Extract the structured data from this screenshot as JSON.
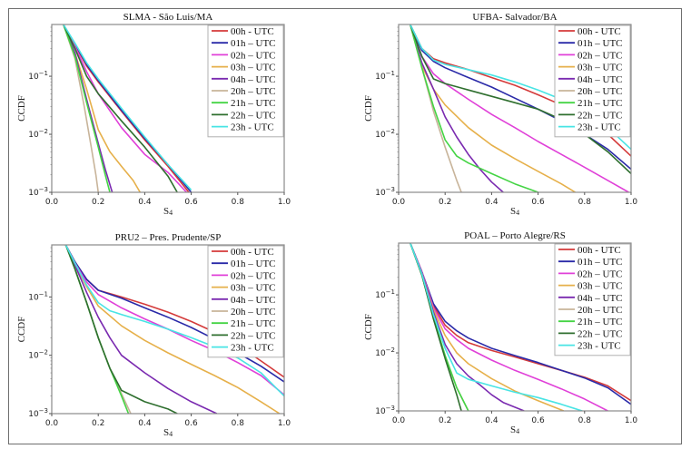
{
  "figure": {
    "legend_labels": [
      "00h - UTC",
      "01h – UTC",
      "02h – UTC",
      "03h – UTC",
      "04h – UTC",
      "20h – UTC",
      "21h – UTC",
      "22h – UTC",
      "23h - UTC"
    ],
    "series_colors": [
      "#d43a3a",
      "#2a2aa8",
      "#e040d8",
      "#e6b04a",
      "#7a2ab0",
      "#c8b49a",
      "#44d444",
      "#2f6f2f",
      "#48e4e4"
    ]
  },
  "chart_data": [
    {
      "type": "line",
      "title": "SLMA  - São Luis/MA",
      "xlabel": "S4",
      "ylabel": "CCDF",
      "xlim": [
        0.0,
        1.0
      ],
      "ylim": [
        0.001,
        0.78
      ],
      "yscale": "log",
      "xticks": [
        "0.0",
        "0.2",
        "0.4",
        "0.6",
        "0.8",
        "1.0"
      ],
      "yticks": [
        "10^-3",
        "10^-2",
        "10^-1"
      ],
      "legend": "top-right",
      "grid": false,
      "series": [
        {
          "name": "00h - UTC",
          "x": [
            0.05,
            0.1,
            0.15,
            0.2,
            0.3,
            0.4,
            0.5,
            0.59
          ],
          "y": [
            0.78,
            0.35,
            0.15,
            0.08,
            0.025,
            0.008,
            0.0028,
            0.001
          ]
        },
        {
          "name": "01h – UTC",
          "x": [
            0.05,
            0.1,
            0.15,
            0.2,
            0.3,
            0.4,
            0.5,
            0.6
          ],
          "y": [
            0.78,
            0.36,
            0.16,
            0.085,
            0.026,
            0.0085,
            0.003,
            0.001
          ]
        },
        {
          "name": "02h – UTC",
          "x": [
            0.05,
            0.1,
            0.15,
            0.2,
            0.3,
            0.4,
            0.5,
            0.58
          ],
          "y": [
            0.78,
            0.33,
            0.12,
            0.05,
            0.013,
            0.0045,
            0.0022,
            0.001
          ]
        },
        {
          "name": "03h – UTC",
          "x": [
            0.05,
            0.1,
            0.15,
            0.2,
            0.25,
            0.3,
            0.35,
            0.38
          ],
          "y": [
            0.78,
            0.25,
            0.06,
            0.012,
            0.005,
            0.0028,
            0.0016,
            0.001
          ]
        },
        {
          "name": "04h – UTC",
          "x": [
            0.05,
            0.1,
            0.15,
            0.2,
            0.23,
            0.26
          ],
          "y": [
            0.78,
            0.25,
            0.04,
            0.007,
            0.0025,
            0.001
          ]
        },
        {
          "name": "20h – UTC",
          "x": [
            0.05,
            0.1,
            0.14,
            0.17,
            0.19,
            0.2
          ],
          "y": [
            0.78,
            0.2,
            0.03,
            0.006,
            0.002,
            0.001
          ]
        },
        {
          "name": "21h – UTC",
          "x": [
            0.05,
            0.1,
            0.15,
            0.2,
            0.23,
            0.25
          ],
          "y": [
            0.78,
            0.22,
            0.035,
            0.006,
            0.002,
            0.001
          ]
        },
        {
          "name": "22h – UTC",
          "x": [
            0.05,
            0.1,
            0.15,
            0.2,
            0.3,
            0.4,
            0.5,
            0.54
          ],
          "y": [
            0.78,
            0.3,
            0.1,
            0.05,
            0.017,
            0.006,
            0.0019,
            0.001
          ]
        },
        {
          "name": "23h - UTC",
          "x": [
            0.05,
            0.1,
            0.15,
            0.2,
            0.3,
            0.4,
            0.5,
            0.6
          ],
          "y": [
            0.78,
            0.37,
            0.17,
            0.09,
            0.028,
            0.009,
            0.003,
            0.0011
          ]
        }
      ]
    },
    {
      "type": "line",
      "title": "UFBA- Salvador/BA",
      "xlabel": "S4",
      "ylabel": "CCDF",
      "xlim": [
        0.0,
        1.0
      ],
      "ylim": [
        0.001,
        0.78
      ],
      "yscale": "log",
      "xticks": [
        "0.0",
        "0.2",
        "0.4",
        "0.6",
        "0.8",
        "1.0"
      ],
      "yticks": [
        "10^-3",
        "10^-2",
        "10^-1"
      ],
      "legend": "top-right",
      "grid": false,
      "series": [
        {
          "name": "00h - UTC",
          "x": [
            0.05,
            0.1,
            0.15,
            0.2,
            0.3,
            0.4,
            0.5,
            0.6,
            0.7,
            0.8,
            0.9,
            1.0
          ],
          "y": [
            0.78,
            0.3,
            0.2,
            0.17,
            0.13,
            0.095,
            0.07,
            0.048,
            0.032,
            0.019,
            0.01,
            0.0042
          ]
        },
        {
          "name": "01h – UTC",
          "x": [
            0.05,
            0.1,
            0.15,
            0.2,
            0.3,
            0.4,
            0.5,
            0.6,
            0.7,
            0.8,
            0.9,
            1.0
          ],
          "y": [
            0.78,
            0.28,
            0.18,
            0.14,
            0.095,
            0.065,
            0.042,
            0.027,
            0.017,
            0.01,
            0.0055,
            0.0025
          ]
        },
        {
          "name": "02h – UTC",
          "x": [
            0.05,
            0.1,
            0.15,
            0.2,
            0.3,
            0.4,
            0.5,
            0.6,
            0.7,
            0.8,
            0.9,
            0.99
          ],
          "y": [
            0.78,
            0.22,
            0.11,
            0.075,
            0.04,
            0.022,
            0.013,
            0.0075,
            0.0045,
            0.0027,
            0.0016,
            0.001
          ]
        },
        {
          "name": "03h – UTC",
          "x": [
            0.05,
            0.1,
            0.15,
            0.2,
            0.3,
            0.4,
            0.5,
            0.6,
            0.7,
            0.76
          ],
          "y": [
            0.78,
            0.15,
            0.06,
            0.032,
            0.013,
            0.0065,
            0.0038,
            0.0023,
            0.0014,
            0.001
          ]
        },
        {
          "name": "04h – UTC",
          "x": [
            0.05,
            0.1,
            0.15,
            0.2,
            0.25,
            0.3,
            0.35,
            0.4,
            0.45
          ],
          "y": [
            0.78,
            0.17,
            0.06,
            0.02,
            0.009,
            0.0045,
            0.0025,
            0.0015,
            0.001
          ]
        },
        {
          "name": "20h – UTC",
          "x": [
            0.05,
            0.1,
            0.15,
            0.2,
            0.25,
            0.27
          ],
          "y": [
            0.78,
            0.14,
            0.025,
            0.006,
            0.0016,
            0.001
          ]
        },
        {
          "name": "21h – UTC",
          "x": [
            0.05,
            0.1,
            0.15,
            0.2,
            0.25,
            0.3,
            0.4,
            0.5,
            0.6
          ],
          "y": [
            0.78,
            0.14,
            0.03,
            0.008,
            0.0042,
            0.0032,
            0.0021,
            0.0014,
            0.001
          ]
        },
        {
          "name": "22h – UTC",
          "x": [
            0.05,
            0.1,
            0.15,
            0.2,
            0.3,
            0.4,
            0.5,
            0.6,
            0.7,
            0.8,
            0.9,
            1.0
          ],
          "y": [
            0.78,
            0.22,
            0.09,
            0.075,
            0.058,
            0.045,
            0.035,
            0.027,
            0.018,
            0.01,
            0.005,
            0.0021
          ]
        },
        {
          "name": "23h - UTC",
          "x": [
            0.05,
            0.1,
            0.15,
            0.2,
            0.3,
            0.4,
            0.5,
            0.6,
            0.7,
            0.8,
            0.9,
            1.0
          ],
          "y": [
            0.78,
            0.3,
            0.19,
            0.16,
            0.13,
            0.105,
            0.08,
            0.058,
            0.04,
            0.025,
            0.013,
            0.0055
          ]
        }
      ]
    },
    {
      "type": "line",
      "title": "PRU2 – Pres. Prudente/SP",
      "xlabel": "S4",
      "ylabel": "CCDF",
      "xlim": [
        0.0,
        1.0
      ],
      "ylim": [
        0.001,
        0.78
      ],
      "yscale": "log",
      "xticks": [
        "0.0",
        "0.2",
        "0.4",
        "0.6",
        "0.8",
        "1.0"
      ],
      "yticks": [
        "10^-3",
        "10^-2",
        "10^-1"
      ],
      "legend": "top-right",
      "grid": false,
      "series": [
        {
          "name": "00h - UTC",
          "x": [
            0.06,
            0.1,
            0.15,
            0.2,
            0.3,
            0.4,
            0.5,
            0.6,
            0.7,
            0.8,
            0.9,
            1.0
          ],
          "y": [
            0.78,
            0.4,
            0.2,
            0.13,
            0.1,
            0.075,
            0.055,
            0.038,
            0.025,
            0.015,
            0.008,
            0.0042
          ]
        },
        {
          "name": "01h – UTC",
          "x": [
            0.06,
            0.1,
            0.15,
            0.2,
            0.3,
            0.4,
            0.5,
            0.6,
            0.7,
            0.8,
            0.9,
            1.0
          ],
          "y": [
            0.78,
            0.4,
            0.2,
            0.13,
            0.095,
            0.065,
            0.045,
            0.03,
            0.019,
            0.011,
            0.0065,
            0.0035
          ]
        },
        {
          "name": "02h – UTC",
          "x": [
            0.06,
            0.1,
            0.15,
            0.2,
            0.3,
            0.4,
            0.5,
            0.6,
            0.7,
            0.8,
            0.9,
            1.0
          ],
          "y": [
            0.78,
            0.38,
            0.18,
            0.11,
            0.065,
            0.042,
            0.028,
            0.018,
            0.012,
            0.0075,
            0.0045,
            0.0021
          ]
        },
        {
          "name": "03h – UTC",
          "x": [
            0.06,
            0.1,
            0.15,
            0.2,
            0.3,
            0.4,
            0.5,
            0.6,
            0.7,
            0.8,
            0.9,
            0.98
          ],
          "y": [
            0.78,
            0.36,
            0.15,
            0.07,
            0.032,
            0.018,
            0.011,
            0.007,
            0.0045,
            0.0028,
            0.0016,
            0.001
          ]
        },
        {
          "name": "04h – UTC",
          "x": [
            0.06,
            0.1,
            0.15,
            0.2,
            0.25,
            0.3,
            0.4,
            0.5,
            0.6,
            0.71
          ],
          "y": [
            0.78,
            0.35,
            0.12,
            0.045,
            0.02,
            0.01,
            0.005,
            0.0027,
            0.0016,
            0.001
          ]
        },
        {
          "name": "20h – UTC",
          "x": [
            0.06,
            0.1,
            0.15,
            0.2,
            0.25,
            0.3,
            0.34
          ],
          "y": [
            0.78,
            0.3,
            0.08,
            0.02,
            0.006,
            0.0022,
            0.001
          ]
        },
        {
          "name": "21h – UTC",
          "x": [
            0.06,
            0.1,
            0.15,
            0.2,
            0.25,
            0.3,
            0.33
          ],
          "y": [
            0.78,
            0.3,
            0.08,
            0.02,
            0.006,
            0.002,
            0.001
          ]
        },
        {
          "name": "22h – UTC",
          "x": [
            0.06,
            0.1,
            0.15,
            0.2,
            0.25,
            0.3,
            0.4,
            0.5,
            0.54
          ],
          "y": [
            0.78,
            0.3,
            0.08,
            0.02,
            0.006,
            0.0025,
            0.0016,
            0.0012,
            0.001
          ]
        },
        {
          "name": "23h - UTC",
          "x": [
            0.06,
            0.1,
            0.15,
            0.2,
            0.25,
            0.3,
            0.4,
            0.5,
            0.6,
            0.7,
            0.8,
            0.9,
            1.0
          ],
          "y": [
            0.78,
            0.38,
            0.16,
            0.08,
            0.058,
            0.05,
            0.038,
            0.028,
            0.02,
            0.014,
            0.009,
            0.005,
            0.002
          ]
        }
      ]
    },
    {
      "type": "line",
      "title": "POAL – Porto Alegre/RS",
      "xlabel": "S4",
      "ylabel": "CCDF",
      "xlim": [
        0.0,
        1.0
      ],
      "ylim": [
        0.001,
        0.78
      ],
      "yscale": "log",
      "xticks": [
        "0.0",
        "0.2",
        "0.4",
        "0.6",
        "0.8",
        "1.0"
      ],
      "yticks": [
        "10^-3",
        "10^-2",
        "10^-1"
      ],
      "legend": "top-right",
      "grid": false,
      "series": [
        {
          "name": "00h - UTC",
          "x": [
            0.05,
            0.1,
            0.15,
            0.2,
            0.25,
            0.3,
            0.4,
            0.5,
            0.6,
            0.7,
            0.8,
            0.9,
            1.0
          ],
          "y": [
            0.78,
            0.25,
            0.065,
            0.03,
            0.02,
            0.015,
            0.011,
            0.0085,
            0.0065,
            0.005,
            0.0038,
            0.0027,
            0.0015
          ]
        },
        {
          "name": "01h – UTC",
          "x": [
            0.05,
            0.1,
            0.15,
            0.2,
            0.25,
            0.3,
            0.4,
            0.5,
            0.6,
            0.7,
            0.8,
            0.9,
            1.0
          ],
          "y": [
            0.78,
            0.25,
            0.07,
            0.035,
            0.024,
            0.018,
            0.012,
            0.009,
            0.0068,
            0.005,
            0.0037,
            0.0025,
            0.0013
          ]
        },
        {
          "name": "02h – UTC",
          "x": [
            0.05,
            0.1,
            0.15,
            0.2,
            0.25,
            0.3,
            0.4,
            0.5,
            0.6,
            0.7,
            0.8,
            0.9
          ],
          "y": [
            0.78,
            0.25,
            0.06,
            0.026,
            0.017,
            0.012,
            0.0075,
            0.005,
            0.0035,
            0.0024,
            0.0016,
            0.001
          ]
        },
        {
          "name": "03h – UTC",
          "x": [
            0.05,
            0.1,
            0.15,
            0.2,
            0.25,
            0.3,
            0.4,
            0.5,
            0.6,
            0.71
          ],
          "y": [
            0.78,
            0.24,
            0.055,
            0.02,
            0.01,
            0.0065,
            0.0036,
            0.0022,
            0.0015,
            0.001
          ]
        },
        {
          "name": "04h – UTC",
          "x": [
            0.05,
            0.1,
            0.15,
            0.2,
            0.25,
            0.3,
            0.35,
            0.4,
            0.45,
            0.54
          ],
          "y": [
            0.78,
            0.24,
            0.05,
            0.014,
            0.0065,
            0.004,
            0.0028,
            0.0019,
            0.0014,
            0.001
          ]
        },
        {
          "name": "20h – UTC",
          "x": [
            0.05,
            0.1,
            0.15,
            0.2,
            0.25,
            0.3
          ],
          "y": [
            0.78,
            0.22,
            0.04,
            0.009,
            0.0025,
            0.001
          ]
        },
        {
          "name": "21h – UTC",
          "x": [
            0.05,
            0.1,
            0.15,
            0.2,
            0.25,
            0.3
          ],
          "y": [
            0.78,
            0.22,
            0.04,
            0.009,
            0.0025,
            0.001
          ]
        },
        {
          "name": "22h – UTC",
          "x": [
            0.05,
            0.1,
            0.15,
            0.2,
            0.25,
            0.27
          ],
          "y": [
            0.78,
            0.22,
            0.038,
            0.008,
            0.0019,
            0.001
          ]
        },
        {
          "name": "23h - UTC",
          "x": [
            0.05,
            0.1,
            0.15,
            0.2,
            0.25,
            0.3,
            0.4,
            0.5,
            0.6,
            0.7,
            0.79
          ],
          "y": [
            0.78,
            0.23,
            0.045,
            0.012,
            0.0045,
            0.0035,
            0.0027,
            0.0021,
            0.0017,
            0.0013,
            0.001
          ]
        }
      ]
    }
  ]
}
